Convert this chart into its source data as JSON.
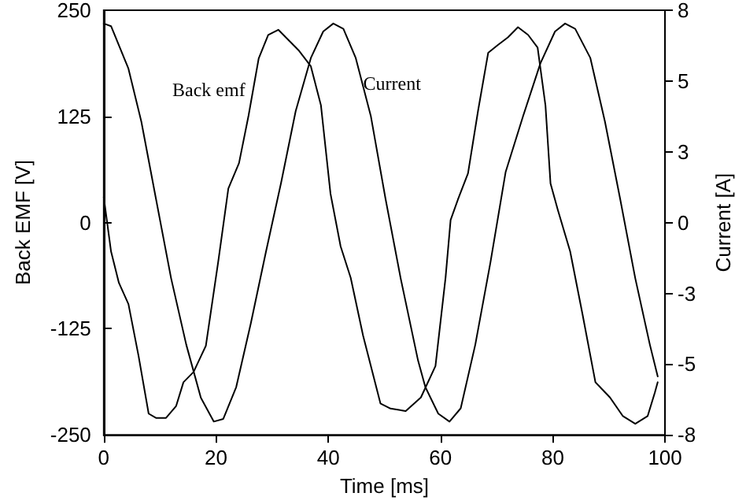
{
  "chart_data": {
    "type": "line",
    "xlabel": "Time [ms]",
    "ylabel": "Back EMF [V]",
    "y2label": "Current [A]",
    "xlim": [
      0,
      100
    ],
    "xticks": [
      0,
      20,
      40,
      60,
      80,
      100
    ],
    "ylim": [
      -250,
      250
    ],
    "yticks": [
      -250,
      -125,
      0,
      125,
      250
    ],
    "y2lim": [
      -8,
      8
    ],
    "y2ticks": [
      -8,
      {
        "value": -5.33,
        "label": "-5"
      },
      {
        "value": -2.67,
        "label": "-3"
      },
      0,
      {
        "value": 2.67,
        "label": "3"
      },
      {
        "value": 5.33,
        "label": "5"
      },
      8
    ],
    "marker": "none",
    "line_style": "solid",
    "series": [
      {
        "name": "Back emf",
        "color": "#000000",
        "x": [
          0,
          1.3,
          2.7,
          4.4,
          6.2,
          8,
          9.3,
          11.1,
          12.9,
          14.2,
          16,
          18.2,
          20.4,
          22.2,
          24.1,
          25.8,
          27.6,
          29.3,
          31.1,
          32.9,
          34.7,
          36.9,
          38.7,
          40.4,
          42.2,
          44,
          46.2,
          49.3,
          51.1,
          53.8,
          56.5,
          59.1,
          60.9,
          61.8,
          63.1,
          64.9,
          66.7,
          68.5,
          70.2,
          72,
          73.8,
          75.6,
          77.3,
          78.7,
          79.6,
          80.9,
          83.1,
          85.3,
          87.6,
          90.2,
          92.5,
          94.7,
          96.9,
          98.2,
          98.7
        ],
        "values": [
          30,
          -34,
          -71,
          -96,
          -157,
          -225,
          -230,
          -230,
          -216,
          -188,
          -176,
          -145,
          -46,
          40,
          70,
          126,
          193,
          221,
          227,
          215,
          203,
          184,
          138,
          34,
          -28,
          -65,
          -133,
          -213,
          -219,
          -222,
          -206,
          -169,
          -65,
          3,
          27,
          58,
          132,
          200,
          209,
          218,
          230,
          221,
          206,
          138,
          46,
          15,
          -34,
          -108,
          -188,
          -206,
          -228,
          -237,
          -228,
          -200,
          -188
        ]
      },
      {
        "name": "Current",
        "color": "#000000",
        "axis": "y2",
        "x": [
          0,
          1.3,
          4.4,
          6.7,
          9.3,
          12,
          14.7,
          17.3,
          19.6,
          21.3,
          23.6,
          26.2,
          28.9,
          31.6,
          34.2,
          36.9,
          39.1,
          40.9,
          42.7,
          44.9,
          47.6,
          50.2,
          52.9,
          56,
          57.3,
          59.6,
          61.6,
          63.6,
          66.2,
          68.9,
          71.6,
          74.7,
          77.8,
          80.4,
          82.2,
          84,
          86.7,
          89.3,
          92,
          94.7,
          97.3,
          98.7
        ],
        "values": [
          7.5,
          7.4,
          5.8,
          3.8,
          0.9,
          -2.1,
          -4.6,
          -6.6,
          -7.5,
          -7.4,
          -6.2,
          -3.8,
          -1.1,
          1.5,
          4.2,
          6.2,
          7.2,
          7.5,
          7.3,
          6.2,
          4.0,
          0.9,
          -2.1,
          -5.2,
          -6.2,
          -7.2,
          -7.5,
          -7.0,
          -4.6,
          -1.5,
          1.9,
          4.0,
          6.0,
          7.2,
          7.5,
          7.3,
          6.2,
          3.8,
          0.9,
          -2.1,
          -4.6,
          -5.8
        ]
      }
    ]
  }
}
